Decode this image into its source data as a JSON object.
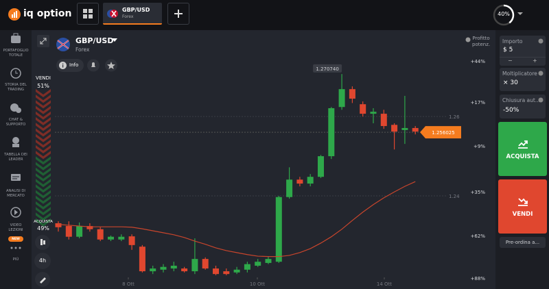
{
  "top_bar": {
    "logo": "iq option",
    "tab": {
      "title": "GBP/USD",
      "subtitle": "Forex"
    },
    "progress": "40%"
  },
  "sidebar": {
    "items": [
      {
        "lines": [
          "PORTAFOGLIO",
          "TOTALE"
        ]
      },
      {
        "lines": [
          "STORIA DEL",
          "TRADING"
        ]
      },
      {
        "lines": [
          "CHAT &",
          "SUPPORTO"
        ]
      },
      {
        "lines": [
          "TABELLA DEI",
          "LEADER"
        ]
      },
      {
        "lines": [
          "ANALISI DI",
          "MERCATO"
        ]
      },
      {
        "lines": [
          "VIDEO",
          "LEZIONI"
        ]
      }
    ],
    "new_badge": "NEW",
    "more": "PIÙ"
  },
  "asset_header": {
    "title": "GBP/USD",
    "subtitle": "Forex",
    "info": "Info"
  },
  "sentiment": {
    "sell_label": "VENDI",
    "sell": "51%",
    "buy_label": "ACQUISTA",
    "buy": "49%"
  },
  "timeframe": "4h",
  "chart_data": {
    "type": "candlestick",
    "color_up": "#2ea84a",
    "color_down": "#e0472f",
    "ma_color": "#c9452c",
    "ylim": [
      1.2186,
      1.2816
    ],
    "yticks": [
      1.24,
      1.26
    ],
    "high_label": {
      "value": 1.27074,
      "label": "1.270740"
    },
    "current_price": 1.256025,
    "x_labels": [
      "8 Ott",
      "10 Ott",
      "14 Ott"
    ],
    "candles": [
      {
        "open": 1.2331,
        "high": 1.2336,
        "low": 1.231,
        "close": 1.2321
      },
      {
        "open": 1.2324,
        "high": 1.2336,
        "low": 1.229,
        "close": 1.2297
      },
      {
        "open": 1.2297,
        "high": 1.2333,
        "low": 1.2293,
        "close": 1.2324
      },
      {
        "open": 1.2324,
        "high": 1.2331,
        "low": 1.231,
        "close": 1.2316
      },
      {
        "open": 1.2316,
        "high": 1.2321,
        "low": 1.2286,
        "close": 1.229
      },
      {
        "open": 1.229,
        "high": 1.23,
        "low": 1.2286,
        "close": 1.2297
      },
      {
        "open": 1.229,
        "high": 1.2303,
        "low": 1.2286,
        "close": 1.2297
      },
      {
        "open": 1.2298,
        "high": 1.2303,
        "low": 1.2264,
        "close": 1.2276
      },
      {
        "open": 1.2272,
        "high": 1.2276,
        "low": 1.2207,
        "close": 1.221
      },
      {
        "open": 1.221,
        "high": 1.2224,
        "low": 1.2203,
        "close": 1.2217
      },
      {
        "open": 1.2214,
        "high": 1.2228,
        "low": 1.2207,
        "close": 1.2221
      },
      {
        "open": 1.2217,
        "high": 1.2234,
        "low": 1.221,
        "close": 1.2224
      },
      {
        "open": 1.2217,
        "high": 1.2221,
        "low": 1.2207,
        "close": 1.221
      },
      {
        "open": 1.221,
        "high": 1.2293,
        "low": 1.2203,
        "close": 1.2241
      },
      {
        "open": 1.2241,
        "high": 1.2245,
        "low": 1.2214,
        "close": 1.2217
      },
      {
        "open": 1.2217,
        "high": 1.2224,
        "low": 1.22,
        "close": 1.2203
      },
      {
        "open": 1.221,
        "high": 1.2217,
        "low": 1.22,
        "close": 1.2203
      },
      {
        "open": 1.2207,
        "high": 1.2221,
        "low": 1.2203,
        "close": 1.2214
      },
      {
        "open": 1.2214,
        "high": 1.2234,
        "low": 1.2207,
        "close": 1.2228
      },
      {
        "open": 1.2224,
        "high": 1.2241,
        "low": 1.2221,
        "close": 1.2234
      },
      {
        "open": 1.2231,
        "high": 1.2248,
        "low": 1.2228,
        "close": 1.2241
      },
      {
        "open": 1.2234,
        "high": 1.24,
        "low": 1.2231,
        "close": 1.2397
      },
      {
        "open": 1.2397,
        "high": 1.2472,
        "low": 1.2393,
        "close": 1.2441
      },
      {
        "open": 1.2441,
        "high": 1.2448,
        "low": 1.2424,
        "close": 1.2431
      },
      {
        "open": 1.2431,
        "high": 1.2455,
        "low": 1.2424,
        "close": 1.2448
      },
      {
        "open": 1.2448,
        "high": 1.2503,
        "low": 1.2445,
        "close": 1.25
      },
      {
        "open": 1.25,
        "high": 1.2624,
        "low": 1.2493,
        "close": 1.2621
      },
      {
        "open": 1.2624,
        "high": 1.2707,
        "low": 1.2617,
        "close": 1.2669
      },
      {
        "open": 1.2669,
        "high": 1.2676,
        "low": 1.2634,
        "close": 1.2645
      },
      {
        "open": 1.2631,
        "high": 1.2638,
        "low": 1.26,
        "close": 1.2607
      },
      {
        "open": 1.2607,
        "high": 1.2621,
        "low": 1.2583,
        "close": 1.2612
      },
      {
        "open": 1.2607,
        "high": 1.2617,
        "low": 1.2569,
        "close": 1.2576
      },
      {
        "open": 1.2579,
        "high": 1.2583,
        "low": 1.2517,
        "close": 1.2562
      },
      {
        "open": 1.2566,
        "high": 1.2652,
        "low": 1.2531,
        "close": 1.2571
      },
      {
        "open": 1.2571,
        "high": 1.2576,
        "low": 1.2555,
        "close": 1.2562
      }
    ],
    "moving_average": [
      1.2328,
      1.2326,
      1.2324,
      1.2322,
      1.2322,
      1.2322,
      1.2322,
      1.2321,
      1.2317,
      1.2312,
      1.2307,
      1.2302,
      1.2295,
      1.2286,
      1.2278,
      1.2269,
      1.2262,
      1.2257,
      1.2252,
      1.2248,
      1.2247,
      1.2247,
      1.225,
      1.2257,
      1.2267,
      1.2281,
      1.2297,
      1.2316,
      1.2338,
      1.2359,
      1.2378,
      1.2395,
      1.241,
      1.2424,
      1.2436
    ]
  },
  "profit": {
    "title": [
      "Profitto",
      "potenz."
    ],
    "levels": [
      "+44%",
      "+17%",
      "+9%",
      "+35%",
      "+62%",
      "+88%"
    ]
  },
  "trade_panel": {
    "amount": {
      "label": "Importo",
      "value": "$ 5",
      "minus": "−",
      "plus": "+"
    },
    "multiplier": {
      "label": "Moltiplicatore",
      "value": "× 30"
    },
    "auto_close": {
      "label": "Chiusura aut...",
      "value": "-50%"
    },
    "buy": "ACQUISTA",
    "sell": "VENDI",
    "preorder": "Pre-ordina a..."
  }
}
